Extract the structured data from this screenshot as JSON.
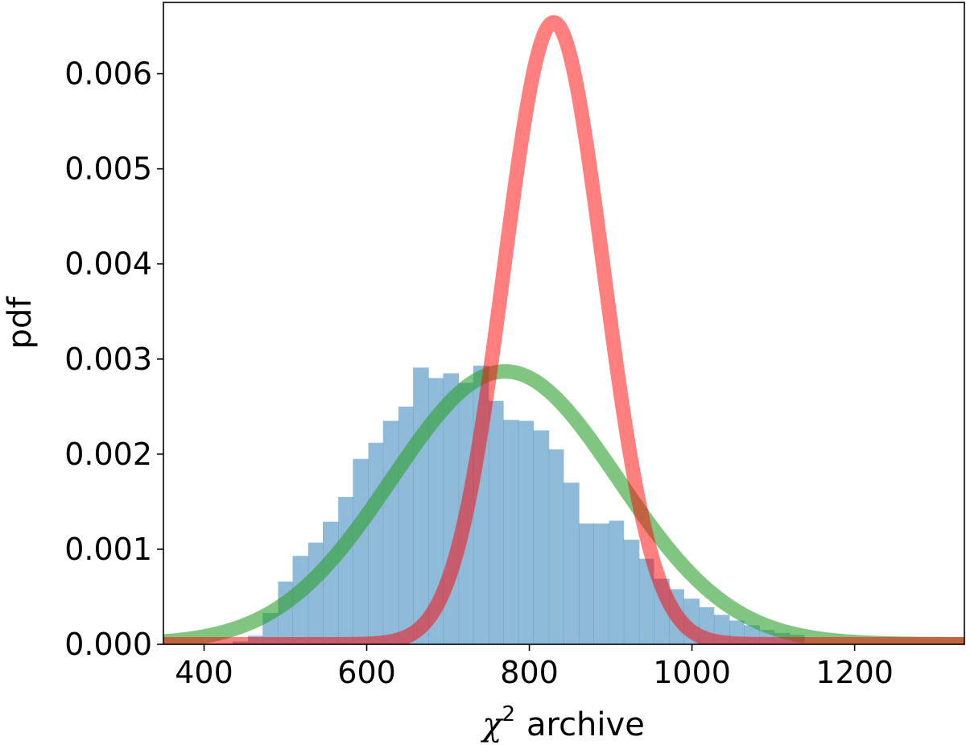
{
  "chart_data": {
    "type": "bar",
    "xlabel": {
      "symbol": "χ",
      "exponent": "2",
      "text": "archive"
    },
    "ylabel": "pdf",
    "xlim": [
      350,
      1335
    ],
    "ylim": [
      0,
      0.00675
    ],
    "xticks": [
      400,
      600,
      800,
      1000,
      1200
    ],
    "xtick_labels": [
      "400",
      "600",
      "800",
      "1000",
      "1200"
    ],
    "yticks": [
      0,
      0.001,
      0.002,
      0.003,
      0.004,
      0.005,
      0.006
    ],
    "ytick_labels": [
      "0.000",
      "0.001",
      "0.002",
      "0.003",
      "0.004",
      "0.005",
      "0.006"
    ],
    "grid": false,
    "legend": "none",
    "histogram": {
      "color": "#1f77b4",
      "opacity": 0.5,
      "bin_edges": [
        435,
        454,
        472,
        491,
        509,
        528,
        546,
        565,
        583,
        602,
        620,
        639,
        657,
        676,
        694,
        713,
        731,
        750,
        768,
        787,
        805,
        824,
        842,
        861,
        879,
        898,
        916,
        935,
        953,
        972,
        990,
        1009,
        1027,
        1046,
        1064,
        1083,
        1101,
        1120,
        1138
      ],
      "values": [
        3e-05,
        9e-05,
        0.00033,
        0.00066,
        0.00093,
        0.00107,
        0.00129,
        0.00155,
        0.00195,
        0.00212,
        0.00235,
        0.0025,
        0.00291,
        0.0028,
        0.00285,
        0.00275,
        0.00293,
        0.00256,
        0.00236,
        0.00235,
        0.00225,
        0.00205,
        0.0017,
        0.00127,
        0.00127,
        0.0013,
        0.0011,
        0.0009,
        0.00069,
        0.00058,
        0.00048,
        0.00039,
        0.00031,
        0.00025,
        0.0002,
        0.00015,
        0.00012,
        0.0001
      ]
    },
    "series": [
      {
        "type": "line",
        "distribution": "normal",
        "mean": 770,
        "sd": 139,
        "color": "#2ca02c",
        "opacity": 0.6
      },
      {
        "type": "line",
        "distribution": "normal",
        "mean": 830,
        "sd": 61,
        "color": "#ff0000",
        "opacity": 0.5
      }
    ]
  }
}
